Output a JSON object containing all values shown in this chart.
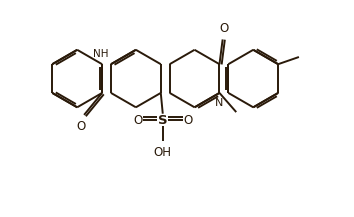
{
  "bg_color": "#ffffff",
  "line_color": "#2a1a0a",
  "line_width": 1.4,
  "figsize": [
    3.54,
    2.17
  ],
  "dpi": 100,
  "s": 0.72,
  "ring_centers": [
    [
      1.1,
      2.55
    ],
    [
      2.57,
      2.55
    ],
    [
      4.04,
      2.55
    ],
    [
      5.51,
      2.55
    ]
  ],
  "xlim": [
    0.0,
    7.2
  ],
  "ylim": [
    -0.9,
    4.5
  ]
}
